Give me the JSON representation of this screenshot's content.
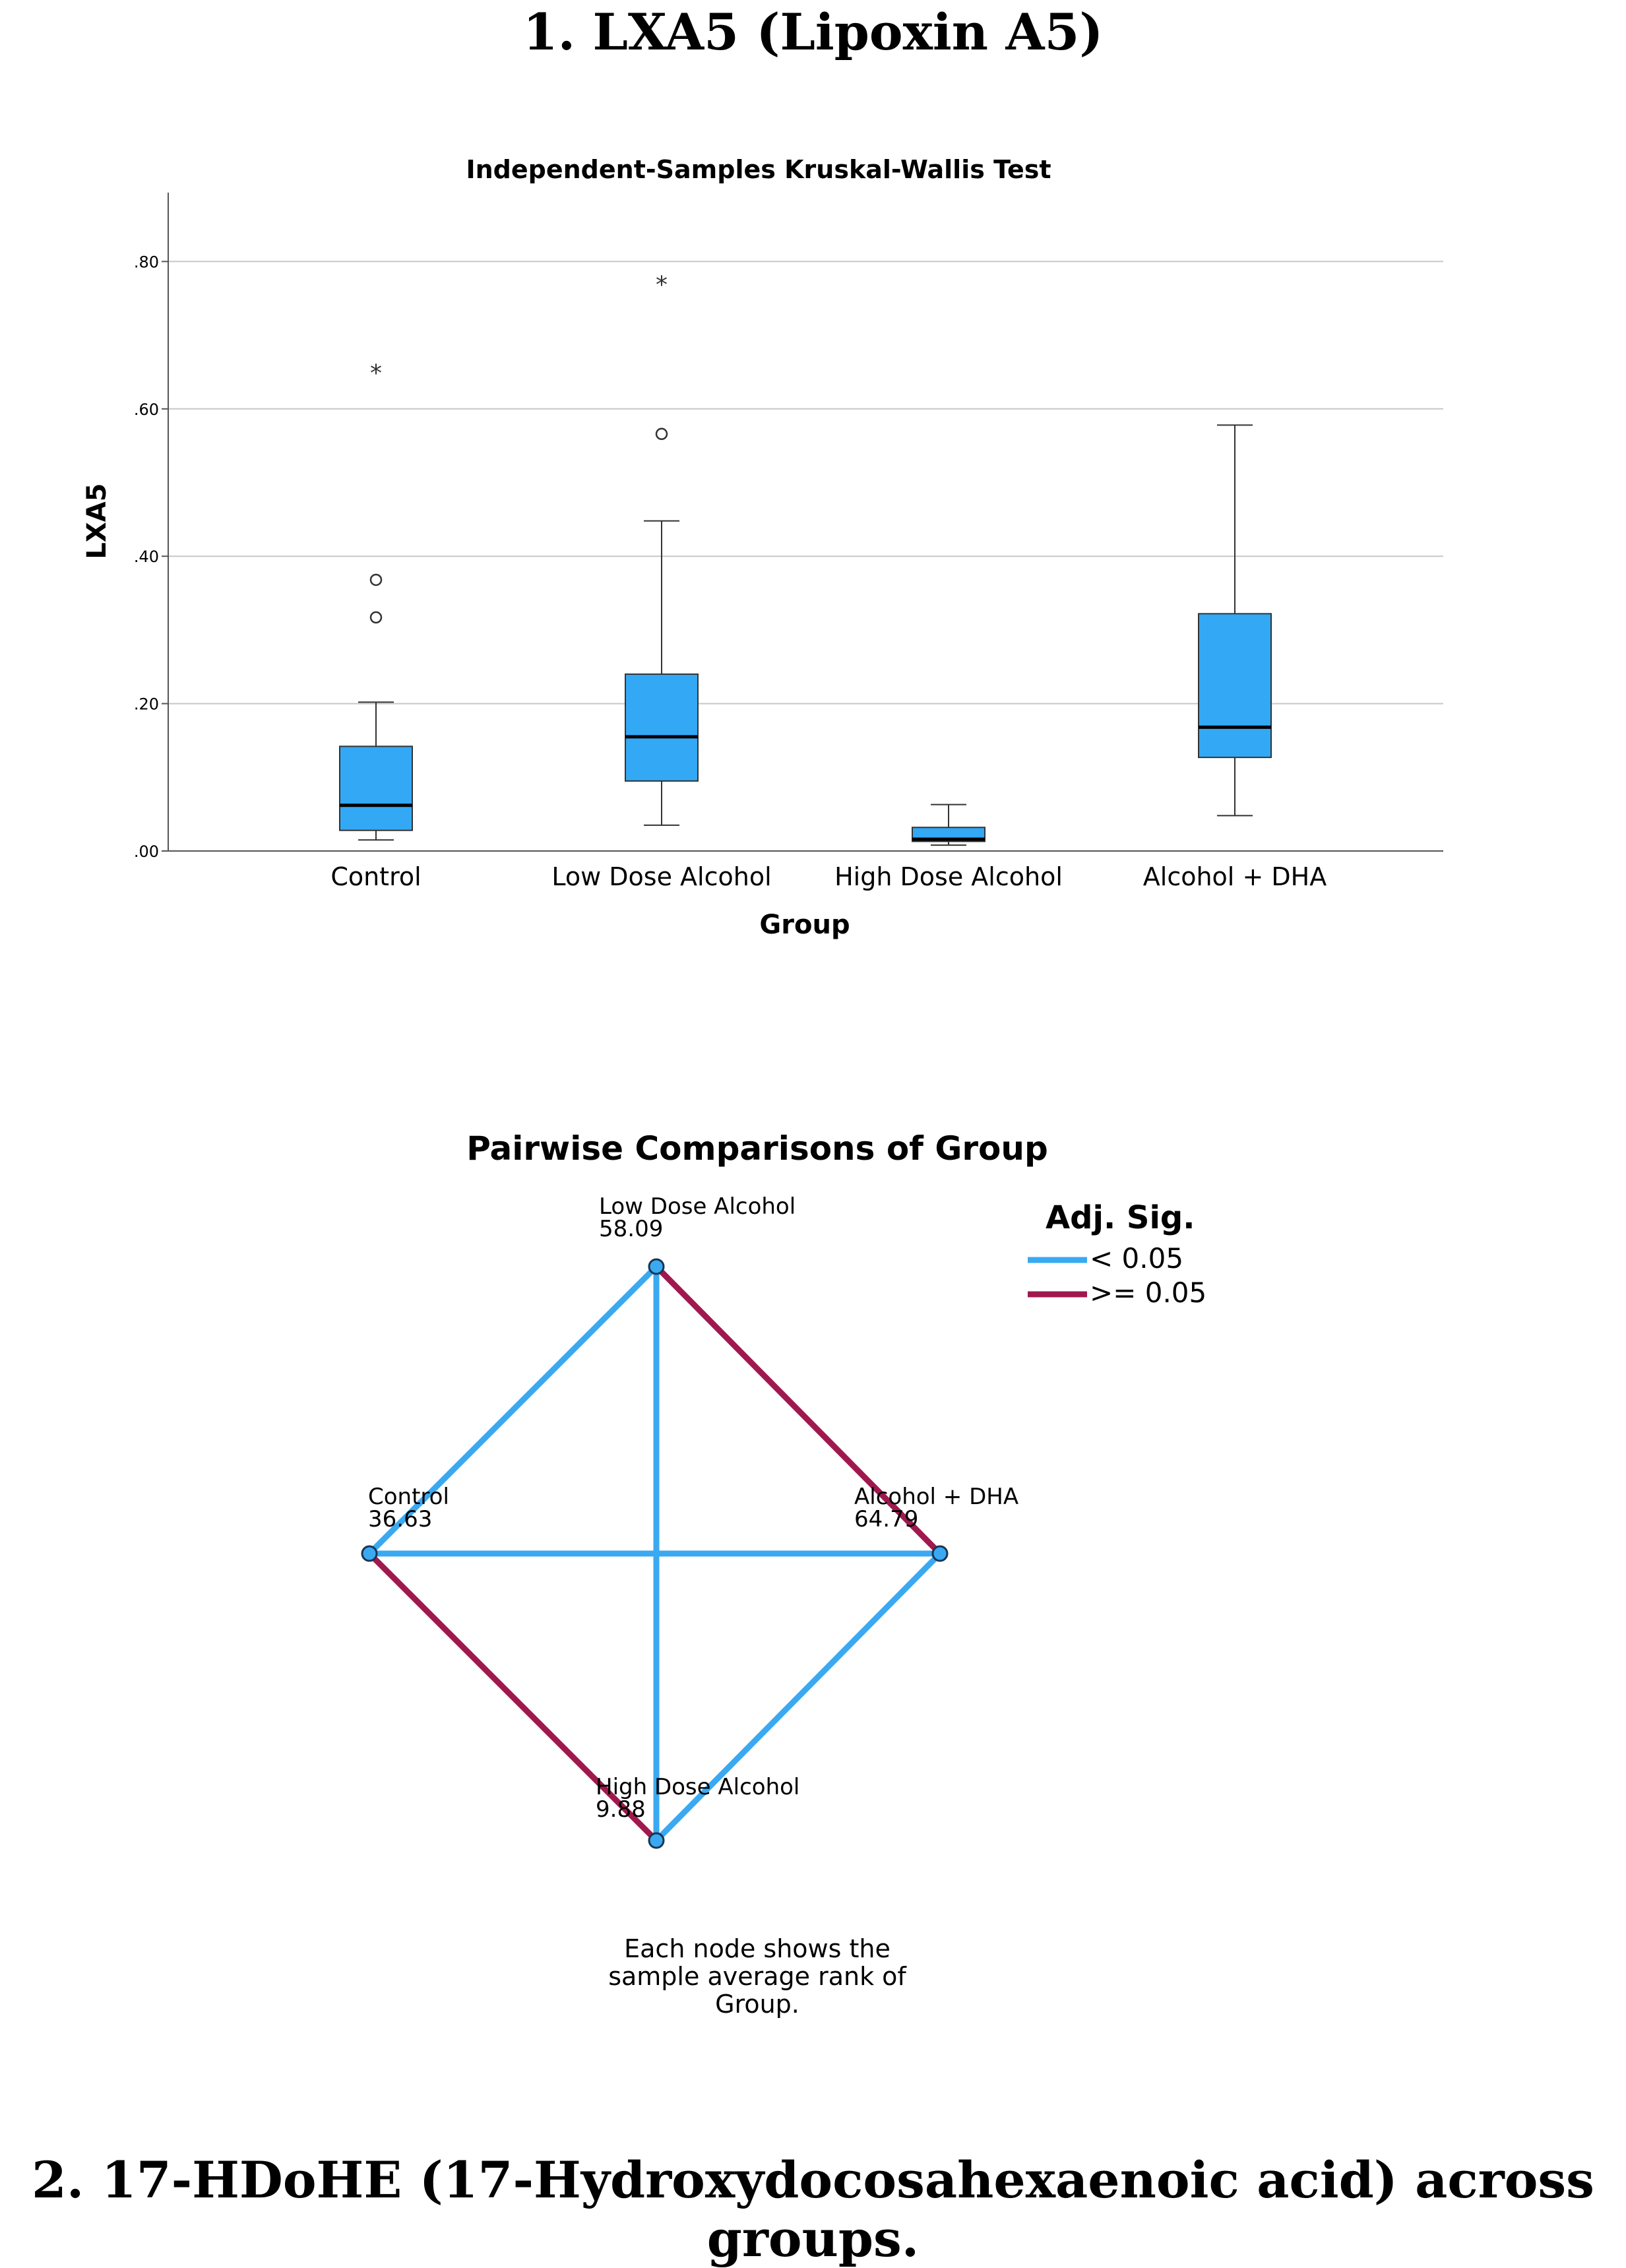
{
  "headings": {
    "first": "1. LXA5 (Lipoxin A5)",
    "second": "2. 17-HDoHE (17-Hydroxydocosahexaenoic acid) across groups."
  },
  "chart_data": [
    {
      "type": "boxplot",
      "title": "Independent-Samples Kruskal-Wallis Test",
      "xlabel": "Group",
      "ylabel": "LXA5",
      "ylim": [
        0,
        0.9
      ],
      "yticks": [
        ".00",
        ".20",
        ".40",
        ".60",
        ".80"
      ],
      "yticks_values": [
        0,
        0.2,
        0.4,
        0.6,
        0.8
      ],
      "grid": true,
      "box_color": "#33a8f5",
      "categories": [
        "Control",
        "Low Dose Alcohol",
        "High Dose Alcohol",
        "Alcohol + DHA"
      ],
      "boxes": [
        {
          "whisker_low": 0.015,
          "q1": 0.028,
          "median": 0.062,
          "q3": 0.142,
          "whisker_high": 0.202,
          "outliers": [
            0.368,
            0.317
          ],
          "extremes": [
            0.652
          ]
        },
        {
          "whisker_low": 0.035,
          "q1": 0.095,
          "median": 0.155,
          "q3": 0.24,
          "whisker_high": 0.448,
          "outliers": [
            0.566
          ],
          "extremes": [
            0.772
          ]
        },
        {
          "whisker_low": 0.008,
          "q1": 0.013,
          "median": 0.016,
          "q3": 0.032,
          "whisker_high": 0.063,
          "outliers": [],
          "extremes": []
        },
        {
          "whisker_low": 0.048,
          "q1": 0.127,
          "median": 0.168,
          "q3": 0.322,
          "whisker_high": 0.578,
          "outliers": [],
          "extremes": []
        }
      ]
    },
    {
      "type": "network",
      "title": "Pairwise Comparisons of Group",
      "legend_title": "Adj. Sig.",
      "legend": [
        {
          "label": "< 0.05",
          "color": "#3aa9f2"
        },
        {
          "label": ">= 0.05",
          "color": "#a0194e"
        }
      ],
      "nodes": [
        {
          "id": "low",
          "name": "Low Dose Alcohol",
          "rank": "58.09"
        },
        {
          "id": "control",
          "name": "Control",
          "rank": "36.63"
        },
        {
          "id": "dha",
          "name": "Alcohol + DHA",
          "rank": "64.79"
        },
        {
          "id": "high",
          "name": "High Dose Alcohol",
          "rank": "9.88"
        }
      ],
      "edges": [
        {
          "from": "low",
          "to": "control",
          "significant": true
        },
        {
          "from": "low",
          "to": "high",
          "significant": true
        },
        {
          "from": "control",
          "to": "dha",
          "significant": true
        },
        {
          "from": "dha",
          "to": "high",
          "significant": true
        },
        {
          "from": "low",
          "to": "dha",
          "significant": false
        },
        {
          "from": "control",
          "to": "high",
          "significant": false
        }
      ],
      "note": [
        "Each node shows the",
        "sample average rank of",
        "Group."
      ]
    }
  ]
}
